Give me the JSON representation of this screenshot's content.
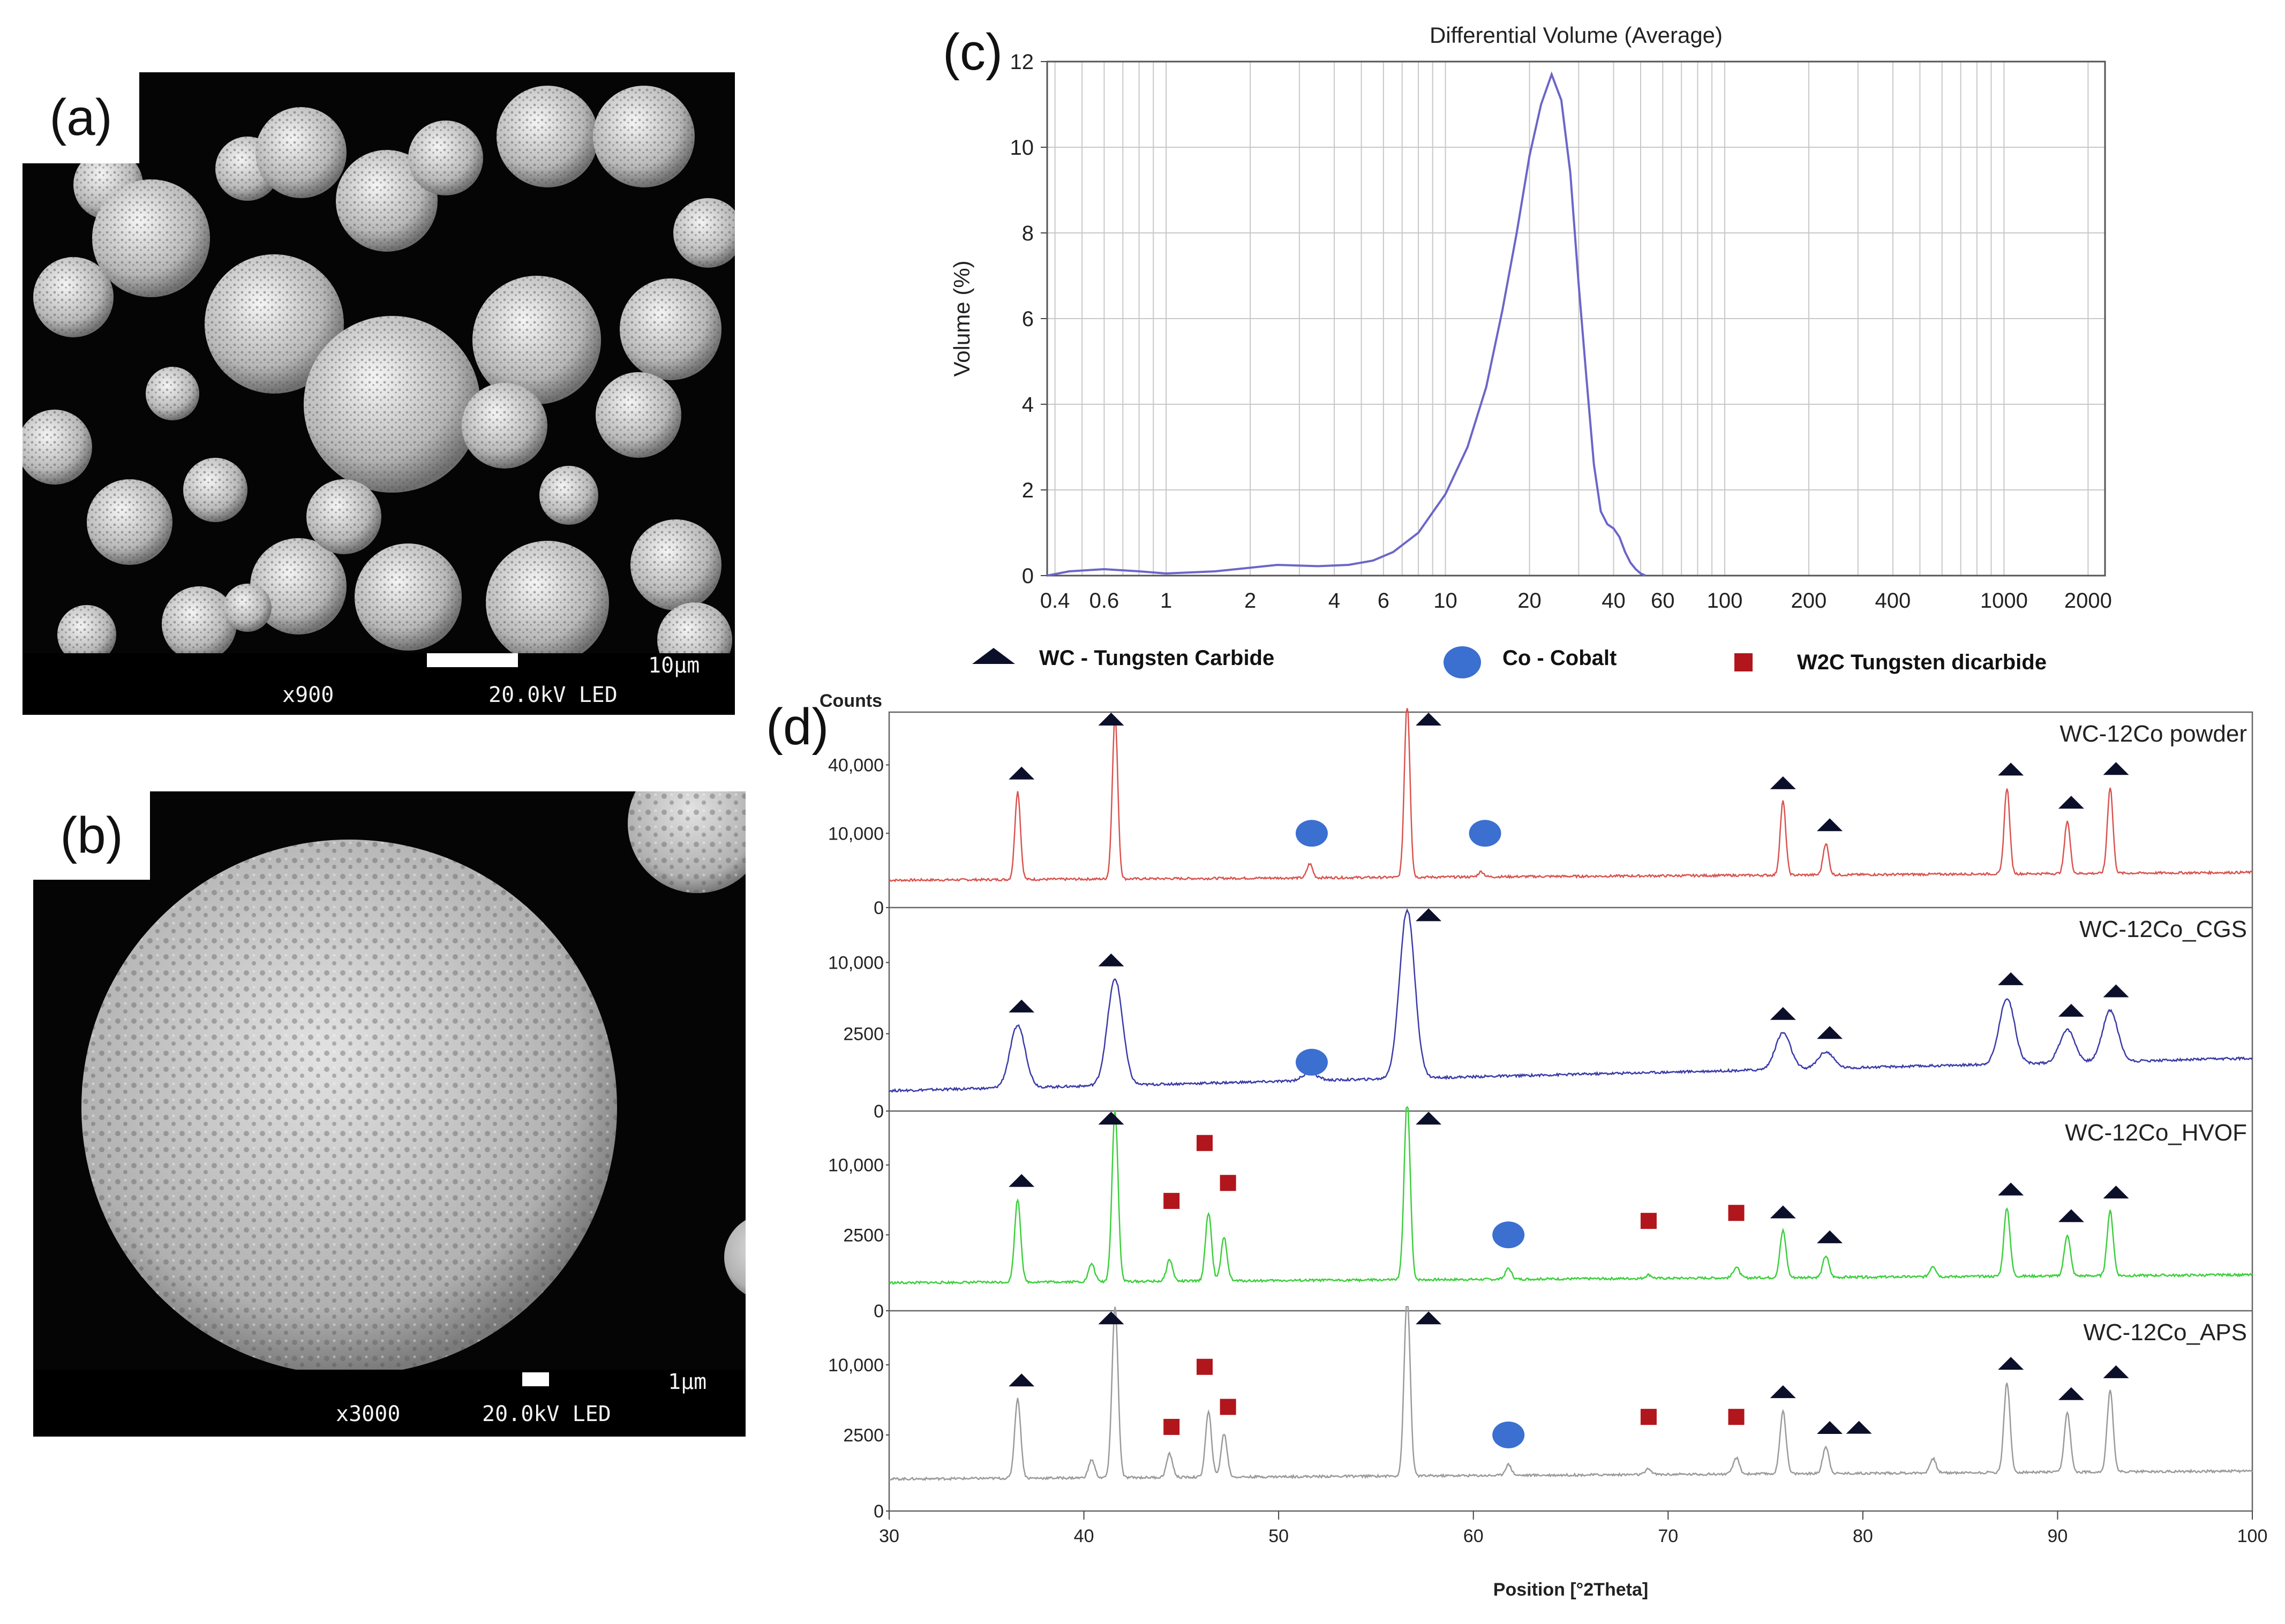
{
  "panel_a": {
    "label": "(a)",
    "magnification": "x900",
    "voltage": "20.0kV LED",
    "scale": "10µm"
  },
  "panel_b": {
    "label": "(b)",
    "magnification": "x3000",
    "voltage": "20.0kV LED",
    "scale": "1µm"
  },
  "panel_c_label": "(c)",
  "panel_d_label": "(d)",
  "legend": {
    "wc": "WC - Tungsten Carbide",
    "co": "Co - Cobalt",
    "w2c": "W2C Tungsten dicarbide"
  },
  "colors": {
    "size_curve": "#6b66c8",
    "powder": "#d9534f",
    "cgs": "#3a3aa8",
    "hvof": "#3ccf3c",
    "aps": "#9a9a9a",
    "wc_marker": "#0b0f2a",
    "co_marker": "#3b6fd0",
    "w2c_marker": "#b0161c"
  },
  "chart_data": [
    {
      "type": "line",
      "title": "Differential Volume (Average)",
      "xlabel": "",
      "ylabel": "Volume (%)",
      "xscale": "log",
      "xlim": [
        0.375,
        2300
      ],
      "ylim": [
        0,
        12
      ],
      "xticks": [
        "0.4",
        "0.6",
        "1",
        "2",
        "4",
        "6",
        "10",
        "20",
        "40",
        "60",
        "100",
        "200",
        "400",
        "1000",
        "2000"
      ],
      "yticks": [
        "0",
        "2",
        "4",
        "6",
        "8",
        "10",
        "12"
      ],
      "grid": true,
      "x": [
        0.375,
        0.45,
        0.6,
        0.8,
        1.0,
        1.5,
        2.5,
        3.5,
        4.5,
        5.5,
        6.5,
        8,
        10,
        12,
        14,
        16,
        18,
        20,
        22,
        24,
        26,
        28,
        30,
        32,
        34,
        36,
        38,
        40,
        42,
        44,
        46,
        48,
        50,
        52
      ],
      "y": [
        0.0,
        0.1,
        0.15,
        0.1,
        0.05,
        0.1,
        0.25,
        0.22,
        0.25,
        0.35,
        0.55,
        1.0,
        1.9,
        3.0,
        4.4,
        6.2,
        8.0,
        9.8,
        11.0,
        11.7,
        11.1,
        9.4,
        6.8,
        4.6,
        2.6,
        1.5,
        1.2,
        1.1,
        0.9,
        0.55,
        0.3,
        0.15,
        0.05,
        0.0
      ]
    },
    {
      "type": "line",
      "xlabel": "Position [°2Theta]",
      "ylabel": "Counts",
      "xlim": [
        30,
        100
      ],
      "xticks": [
        "30",
        "40",
        "50",
        "60",
        "70",
        "80",
        "90",
        "100"
      ],
      "series": [
        {
          "name": "WC-12Co powder",
          "yticks": [
            "0",
            "10,000",
            "40,000"
          ],
          "peaks": [
            [
              36.6,
              0.5
            ],
            [
              41.6,
              0.92
            ],
            [
              51.6,
              0.08
            ],
            [
              56.6,
              1.0
            ],
            [
              60.4,
              0.03
            ],
            [
              75.9,
              0.42
            ],
            [
              78.1,
              0.18
            ],
            [
              87.4,
              0.49
            ],
            [
              90.5,
              0.3
            ],
            [
              92.7,
              0.49
            ]
          ],
          "wc_markers": [
            36.8,
            41.4,
            57.7,
            75.9,
            78.3,
            87.6,
            90.7,
            93.0
          ],
          "co_markers": [
            51.7,
            60.6
          ]
        },
        {
          "name": "WC-12Co_CGS",
          "yticks": [
            "0",
            "2500",
            "10,000"
          ],
          "peaks": [
            [
              36.6,
              0.34
            ],
            [
              41.6,
              0.58
            ],
            [
              51.6,
              0.04
            ],
            [
              56.6,
              0.92
            ],
            [
              75.9,
              0.2
            ],
            [
              78.1,
              0.09
            ],
            [
              87.4,
              0.36
            ],
            [
              90.5,
              0.18
            ],
            [
              92.7,
              0.28
            ]
          ],
          "wc_markers": [
            36.8,
            41.4,
            57.7,
            75.9,
            78.3,
            87.6,
            90.7,
            93.0
          ],
          "co_markers": [
            51.7
          ]
        },
        {
          "name": "WC-12Co_HVOF",
          "yticks": [
            "0",
            "2500",
            "10,000"
          ],
          "peaks": [
            [
              36.6,
              0.46
            ],
            [
              40.4,
              0.1
            ],
            [
              41.6,
              0.95
            ],
            [
              44.4,
              0.12
            ],
            [
              46.4,
              0.38
            ],
            [
              47.2,
              0.24
            ],
            [
              56.6,
              1.0
            ],
            [
              61.8,
              0.06
            ],
            [
              69.0,
              0.02
            ],
            [
              73.5,
              0.06
            ],
            [
              75.9,
              0.26
            ],
            [
              78.1,
              0.12
            ],
            [
              83.6,
              0.06
            ],
            [
              87.4,
              0.38
            ],
            [
              90.5,
              0.23
            ],
            [
              92.7,
              0.36
            ]
          ],
          "wc_markers": [
            36.8,
            41.4,
            57.7,
            75.9,
            78.3,
            87.6,
            90.7,
            93.0
          ],
          "co_markers": [
            61.8
          ],
          "w2c_markers": [
            [
              44.5,
              0.55
            ],
            [
              46.2,
              0.84
            ],
            [
              47.4,
              0.64
            ],
            [
              69.0,
              0.45
            ],
            [
              73.5,
              0.49
            ]
          ]
        },
        {
          "name": "WC-12Co_APS",
          "yticks": [
            "0",
            "2500",
            "10,000"
          ],
          "peaks": [
            [
              36.6,
              0.44
            ],
            [
              40.4,
              0.1
            ],
            [
              41.6,
              0.95
            ],
            [
              44.4,
              0.13
            ],
            [
              46.4,
              0.36
            ],
            [
              47.2,
              0.24
            ],
            [
              56.6,
              1.0
            ],
            [
              61.8,
              0.06
            ],
            [
              69.0,
              0.03
            ],
            [
              73.5,
              0.09
            ],
            [
              75.9,
              0.35
            ],
            [
              78.1,
              0.15
            ],
            [
              83.6,
              0.08
            ],
            [
              87.4,
              0.5
            ],
            [
              90.5,
              0.33
            ],
            [
              92.7,
              0.45
            ]
          ],
          "wc_markers": [
            36.8,
            41.4,
            57.7,
            75.9,
            78.3,
            79.8,
            87.6,
            90.7,
            93.0
          ],
          "co_markers": [
            61.8
          ],
          "w2c_markers": [
            [
              44.5,
              0.42
            ],
            [
              46.2,
              0.72
            ],
            [
              47.4,
              0.52
            ],
            [
              69.0,
              0.47
            ],
            [
              73.5,
              0.47
            ]
          ]
        }
      ]
    }
  ]
}
